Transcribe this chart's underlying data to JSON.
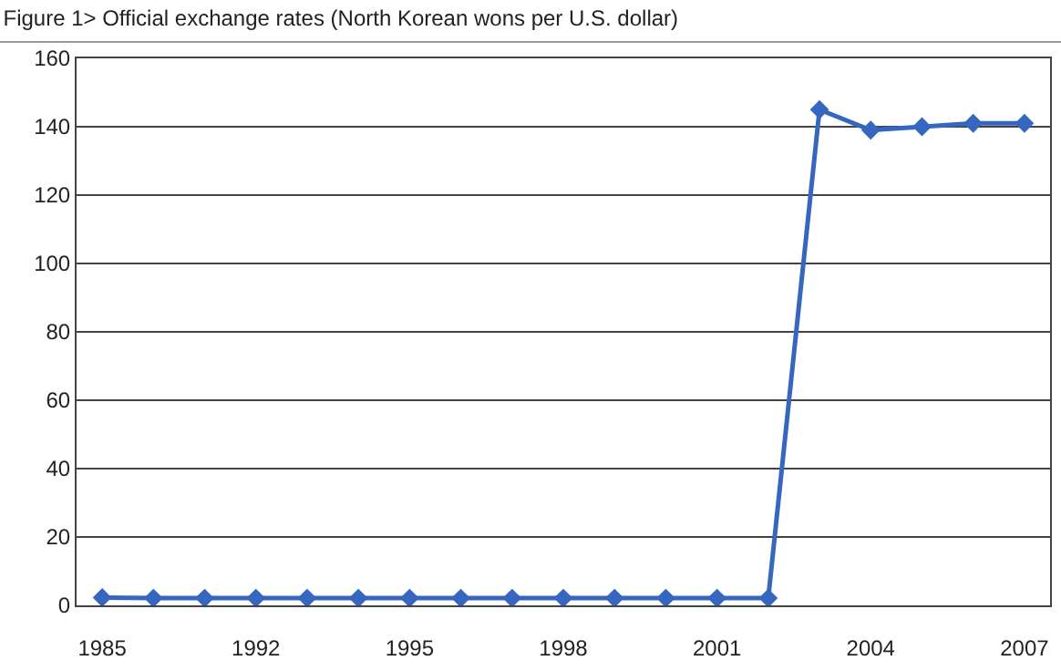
{
  "chart_data": {
    "type": "line",
    "title": "Figure 1> Official exchange rates (North Korean wons per U.S. dollar)",
    "categories": [
      "1985",
      null,
      null,
      "1992",
      null,
      null,
      "1995",
      null,
      null,
      "1998",
      null,
      null,
      "2001",
      null,
      null,
      "2004",
      null,
      null,
      "2007"
    ],
    "series": [
      {
        "color": "#3566c0",
        "values": [
          2.3,
          2.1,
          2.1,
          2.1,
          2.1,
          2.1,
          2.1,
          2.1,
          2.1,
          2.1,
          2.1,
          2.1,
          2.1,
          2.1,
          145,
          139,
          140,
          141,
          141
        ]
      }
    ],
    "ylim": [
      0,
      160
    ],
    "yticks": [
      0,
      20,
      40,
      60,
      80,
      100,
      120,
      140,
      160
    ],
    "grid": "y",
    "marker": "diamond",
    "line_style": "solid"
  }
}
